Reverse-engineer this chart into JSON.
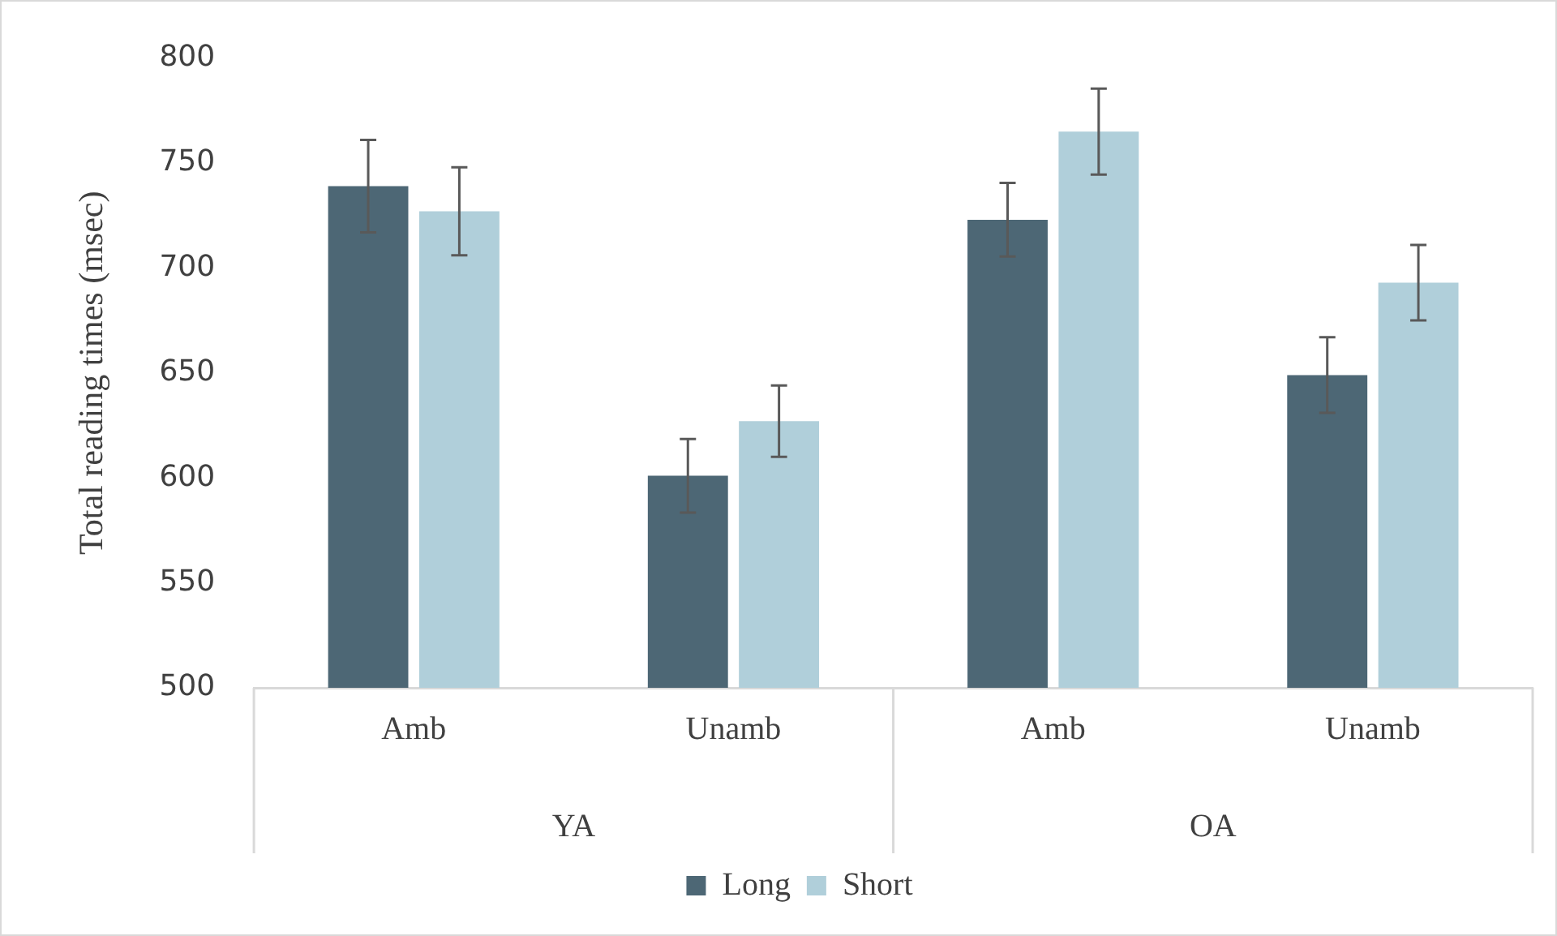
{
  "chart_data": {
    "type": "bar",
    "ylabel": "Total reading times (msec)",
    "categories": [
      "Amb",
      "Unamb",
      "Amb",
      "Unamb"
    ],
    "annotations": [
      "YA",
      "OA"
    ],
    "series": [
      {
        "name": "Long",
        "color": "#4d6775",
        "values": [
          739,
          601,
          723,
          649
        ],
        "errors": [
          22,
          17.5,
          17.5,
          18
        ]
      },
      {
        "name": "Short",
        "color": "#b0cfda",
        "values": [
          727,
          627,
          765,
          693
        ],
        "errors": [
          21,
          17,
          20.5,
          18
        ]
      }
    ],
    "ylim": [
      500,
      800
    ],
    "yticks": [
      500,
      550,
      600,
      650,
      700,
      750,
      800
    ],
    "grid": false,
    "legend": "bottom"
  }
}
